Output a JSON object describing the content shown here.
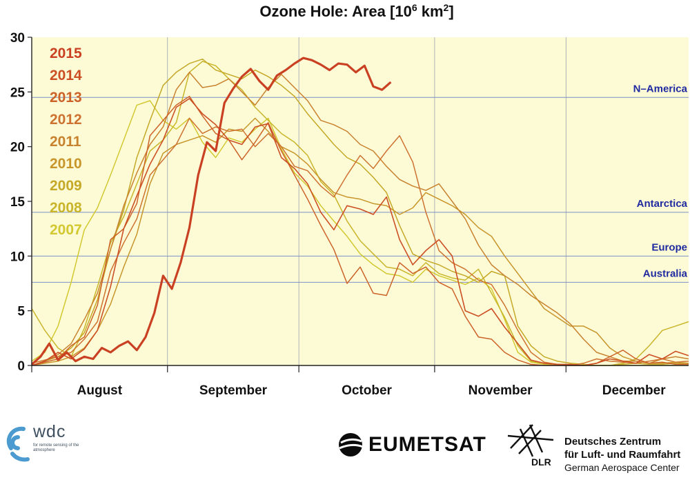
{
  "chart_data": {
    "type": "line",
    "title": "Ozone Hole: Area [10",
    "title_sup": "6",
    "title_mid": " km",
    "title_sup2": "2",
    "title_end": "]",
    "ylim": [
      0,
      30
    ],
    "y_ticks": [
      0,
      5,
      10,
      15,
      20,
      25,
      30
    ],
    "y_tick_labels": [
      "0",
      "5",
      "10",
      "15",
      "20",
      "25",
      "30"
    ],
    "xlim": [
      0,
      150
    ],
    "month_ticks": [
      0,
      31,
      61,
      92,
      122,
      153
    ],
    "month_labels": [
      "August",
      "September",
      "October",
      "November",
      "December"
    ],
    "month_label_positions": [
      15.5,
      46,
      76.5,
      107,
      137.5
    ],
    "grid": true,
    "legend_placement": "top-left",
    "reference_lines": [
      {
        "label": "N–America",
        "value": 24.5
      },
      {
        "label": "Antarctica",
        "value": 14.0
      },
      {
        "label": "Europe",
        "value": 10.0
      },
      {
        "label": "Australia",
        "value": 7.6
      }
    ],
    "series": [
      {
        "name": "2015",
        "color": "#c94122",
        "width": 3.2,
        "x": [
          0,
          2,
          4,
          6,
          8,
          10,
          12,
          14,
          16,
          18,
          20,
          22,
          24,
          26,
          28,
          30,
          32,
          34,
          36,
          38,
          40,
          42,
          44,
          46,
          48,
          50,
          52,
          54,
          56,
          58,
          60,
          62,
          64,
          66,
          68,
          70,
          72,
          74,
          76,
          78,
          80,
          82
        ],
        "y": [
          0.1,
          0.8,
          2.0,
          0.5,
          1.2,
          0.4,
          0.8,
          0.6,
          1.6,
          1.2,
          1.8,
          2.2,
          1.4,
          2.6,
          4.8,
          8.2,
          7.0,
          9.4,
          12.6,
          17.4,
          20.4,
          19.6,
          24.0,
          25.3,
          26.4,
          27.1,
          26.0,
          25.2,
          26.5,
          27.0,
          27.6,
          28.1,
          27.9,
          27.5,
          27.0,
          27.6,
          27.5,
          26.8,
          27.4,
          25.5,
          25.2,
          25.9
        ]
      },
      {
        "name": "2014",
        "color": "#cc4f24",
        "width": 1.6,
        "x": [
          0,
          3,
          6,
          9,
          12,
          15,
          18,
          21,
          24,
          27,
          30,
          33,
          36,
          39,
          42,
          45,
          48,
          51,
          54,
          57,
          60,
          63,
          66,
          69,
          72,
          75,
          78,
          81,
          84,
          87,
          90,
          93,
          96,
          99,
          102,
          105,
          108,
          111,
          114,
          117,
          120,
          123,
          126,
          129,
          132,
          135,
          138,
          141,
          144,
          147,
          150
        ],
        "y": [
          0,
          0.4,
          1.2,
          0.6,
          1.5,
          3.2,
          7.2,
          12.5,
          15.5,
          18.4,
          20.6,
          23.6,
          24.4,
          23.0,
          22.0,
          20.6,
          20.2,
          21.8,
          22.1,
          19.0,
          18.0,
          16.6,
          14.0,
          12.4,
          14.6,
          14.3,
          13.8,
          15.4,
          11.5,
          9.2,
          10.5,
          11.5,
          10.0,
          5.0,
          4.5,
          5.2,
          3.5,
          2.0,
          0.5,
          0.2,
          0.1,
          0.1,
          0,
          0.2,
          0.6,
          0.4,
          0.2,
          1.0,
          0.6,
          1.3,
          0.9
        ]
      },
      {
        "name": "2013",
        "color": "#cc6228",
        "width": 1.5,
        "x": [
          0,
          3,
          6,
          9,
          12,
          15,
          18,
          21,
          24,
          27,
          30,
          33,
          36,
          39,
          42,
          45,
          48,
          51,
          54,
          57,
          60,
          63,
          66,
          69,
          72,
          75,
          78,
          81,
          84,
          87,
          90,
          93,
          96,
          99,
          102,
          105,
          108,
          111,
          114,
          117,
          120,
          123,
          126,
          129,
          132,
          135,
          138,
          141,
          144,
          147,
          150
        ],
        "y": [
          0,
          0.3,
          0.6,
          1.8,
          2.6,
          5.5,
          11.5,
          12.5,
          14.8,
          21.0,
          22.4,
          23.8,
          24.6,
          22.8,
          21.2,
          20.6,
          18.8,
          20.4,
          22.2,
          19.6,
          17.4,
          15.2,
          12.8,
          10.6,
          7.5,
          9.0,
          6.6,
          6.4,
          9.4,
          8.4,
          9.0,
          7.6,
          7.0,
          4.5,
          2.6,
          2.4,
          1.2,
          0.5,
          0.1,
          0,
          0,
          0,
          0,
          0.2,
          0.8,
          1.4,
          0.6,
          0.2,
          0.3,
          0.1,
          0.1
        ]
      },
      {
        "name": "2012",
        "color": "#cd7230",
        "width": 1.5,
        "x": [
          0,
          3,
          6,
          9,
          12,
          15,
          18,
          21,
          24,
          27,
          30,
          33,
          36,
          39,
          42,
          45,
          48,
          51,
          54,
          57,
          60,
          63,
          66,
          69,
          72,
          75,
          78,
          81,
          84,
          87,
          90,
          93,
          96,
          99,
          102,
          105,
          108,
          111,
          114,
          117,
          120,
          123,
          126,
          129,
          132,
          135,
          138,
          141,
          144,
          147,
          150
        ],
        "y": [
          0.2,
          0.5,
          0.8,
          1.2,
          2.4,
          4.0,
          8.6,
          11.2,
          13.4,
          17.4,
          18.8,
          20.2,
          22.6,
          21.2,
          21.8,
          21.4,
          21.6,
          20.0,
          21.2,
          20.0,
          18.2,
          17.8,
          16.4,
          15.4,
          17.4,
          19.2,
          18.0,
          19.6,
          21.0,
          18.6,
          14.0,
          10.5,
          9.4,
          8.8,
          7.8,
          7.4,
          5.5,
          3.2,
          1.2,
          0.3,
          0.1,
          0,
          0.2,
          0.6,
          0.4,
          0.3,
          0.2,
          0.4,
          0.6,
          0.3,
          0.4
        ]
      },
      {
        "name": "2011",
        "color": "#c8822e",
        "width": 1.5,
        "x": [
          0,
          3,
          6,
          9,
          12,
          15,
          18,
          21,
          24,
          27,
          30,
          33,
          36,
          39,
          42,
          45,
          48,
          51,
          54,
          57,
          60,
          63,
          66,
          69,
          72,
          75,
          78,
          81,
          84,
          87,
          90,
          93,
          96,
          99,
          102,
          105,
          108,
          111,
          114,
          117,
          120,
          123,
          126,
          129,
          132,
          135,
          138,
          141,
          144,
          147,
          150
        ],
        "y": [
          0,
          0.4,
          1.0,
          2.0,
          4.2,
          6.6,
          10.6,
          14.6,
          17.6,
          20.2,
          21.8,
          25.2,
          26.8,
          25.4,
          25.6,
          26.2,
          25.0,
          23.8,
          25.4,
          26.6,
          25.4,
          24.2,
          22.4,
          22.0,
          21.4,
          20.2,
          19.6,
          18.2,
          17.0,
          16.4,
          16.0,
          16.6,
          15.0,
          13.4,
          11.0,
          9.2,
          8.2,
          7.4,
          6.4,
          5.6,
          4.8,
          3.8,
          2.4,
          1.2,
          0.8,
          0.4,
          0.4,
          0.2,
          0.6,
          0.8,
          0.6
        ]
      },
      {
        "name": "2010",
        "color": "#c7952a",
        "width": 1.5,
        "x": [
          0,
          3,
          6,
          9,
          12,
          15,
          18,
          21,
          24,
          27,
          30,
          33,
          36,
          39,
          42,
          45,
          48,
          51,
          54,
          57,
          60,
          63,
          66,
          69,
          72,
          75,
          78,
          81,
          84,
          87,
          90,
          93,
          96,
          99,
          102,
          105,
          108,
          111,
          114,
          117,
          120,
          123,
          126,
          129,
          132,
          135,
          138,
          141,
          144,
          147,
          150
        ],
        "y": [
          0,
          0.2,
          0.4,
          0.8,
          1.6,
          3.2,
          5.6,
          9.0,
          12.0,
          16.6,
          19.4,
          20.2,
          20.6,
          21.0,
          20.4,
          21.6,
          21.4,
          22.6,
          21.4,
          20.0,
          19.4,
          18.4,
          17.0,
          15.8,
          15.4,
          15.2,
          14.8,
          14.6,
          13.8,
          14.4,
          15.8,
          15.2,
          14.6,
          13.8,
          12.6,
          11.8,
          10.0,
          8.4,
          6.8,
          5.2,
          4.4,
          3.6,
          3.6,
          3.0,
          1.6,
          0.8,
          0.4,
          0.2,
          0.2,
          0.3,
          0.2
        ]
      },
      {
        "name": "2009",
        "color": "#c4a826",
        "width": 1.5,
        "x": [
          0,
          3,
          6,
          9,
          12,
          15,
          18,
          21,
          24,
          27,
          30,
          33,
          36,
          39,
          42,
          45,
          48,
          51,
          54,
          57,
          60,
          63,
          66,
          69,
          72,
          75,
          78,
          81,
          84,
          87,
          90,
          93,
          96,
          99,
          102,
          105,
          108,
          111,
          114,
          117,
          120,
          123,
          126,
          129,
          132,
          135,
          138,
          141,
          144,
          147,
          150
        ],
        "y": [
          0,
          0.4,
          0.8,
          1.6,
          3.0,
          6.0,
          10.6,
          14.2,
          19.0,
          22.4,
          25.6,
          26.8,
          27.6,
          28.0,
          27.0,
          26.6,
          26.2,
          27.0,
          26.4,
          25.6,
          24.6,
          23.0,
          21.6,
          20.2,
          19.0,
          18.4,
          17.2,
          15.8,
          12.8,
          10.2,
          9.6,
          9.2,
          8.6,
          8.2,
          7.6,
          8.6,
          8.2,
          3.6,
          1.8,
          0.8,
          0.4,
          0.2,
          0.1,
          0,
          0,
          0.1,
          0.2,
          0.1,
          0.1,
          0.2,
          0.1
        ]
      },
      {
        "name": "2008",
        "color": "#c8b52a",
        "width": 1.5,
        "x": [
          0,
          3,
          6,
          9,
          12,
          15,
          18,
          21,
          24,
          27,
          30,
          33,
          36,
          39,
          42,
          45,
          48,
          51,
          54,
          57,
          60,
          63,
          66,
          69,
          72,
          75,
          78,
          81,
          84,
          87,
          90,
          93,
          96,
          99,
          102,
          105,
          108,
          111,
          114,
          117,
          120,
          123,
          126,
          129,
          132,
          135,
          138,
          141,
          144,
          147,
          150
        ],
        "y": [
          5.2,
          3.2,
          1.6,
          0.8,
          3.4,
          7.2,
          11.2,
          13.6,
          16.6,
          19.6,
          20.6,
          22.2,
          26.8,
          27.8,
          27.4,
          26.2,
          25.2,
          23.6,
          22.4,
          21.2,
          20.4,
          19.2,
          16.8,
          15.6,
          13.2,
          11.4,
          10.2,
          9.0,
          8.8,
          8.2,
          9.4,
          8.4,
          8.0,
          7.8,
          8.8,
          6.6,
          4.4,
          1.8,
          0.4,
          0.2,
          0.1,
          0,
          0,
          0,
          0,
          0.2,
          0.6,
          1.8,
          3.2,
          3.6,
          4.0
        ]
      },
      {
        "name": "2007",
        "color": "#d2c830",
        "width": 1.5,
        "x": [
          0,
          3,
          6,
          9,
          12,
          15,
          18,
          21,
          24,
          27,
          30,
          33,
          36,
          39,
          42,
          45,
          48,
          51,
          54,
          57,
          60,
          63,
          66,
          69,
          72,
          75,
          78,
          81,
          84,
          87,
          90,
          93,
          96,
          99,
          102,
          105,
          108,
          111,
          114,
          117,
          120,
          123,
          126,
          129,
          132,
          135,
          138,
          141,
          144,
          147,
          150
        ],
        "y": [
          0.4,
          1.2,
          3.6,
          7.6,
          12.4,
          14.4,
          17.4,
          20.6,
          23.8,
          24.2,
          22.4,
          21.6,
          22.6,
          20.4,
          19.0,
          20.8,
          20.4,
          21.6,
          22.6,
          19.8,
          17.6,
          16.4,
          14.6,
          13.2,
          11.8,
          10.2,
          9.2,
          8.4,
          8.2,
          7.6,
          8.8,
          8.2,
          7.8,
          7.4,
          8.0,
          7.0,
          4.2,
          1.2,
          0.3,
          0.1,
          0,
          0,
          0,
          0,
          0,
          0,
          0,
          0,
          0,
          0,
          0
        ]
      }
    ]
  },
  "logos": {
    "wdc_name": "wdc",
    "wdc_sub": "for remote sensing of the atmosphere",
    "eumetsat": "EUMETSAT",
    "dlr_abbr": "DLR",
    "dlr_line1": "Deutsches Zentrum",
    "dlr_line2": "für Luft- und Raumfahrt",
    "dlr_line3": "German Aerospace Center"
  },
  "colors": {
    "plot_bg": "#fdfbd6",
    "ref_line": "#7d8fc6",
    "ref_label": "#1f2aa0",
    "grid": "#9aa0b0",
    "wdc_blue": "#4c9bd0"
  }
}
